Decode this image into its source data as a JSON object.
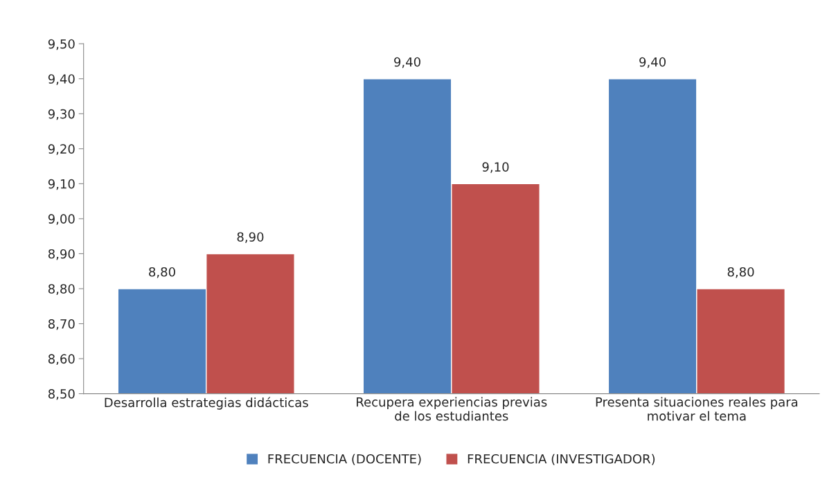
{
  "chart_data": {
    "type": "bar",
    "categories": [
      "Desarrolla estrategias didácticas",
      "Recupera experiencias previas\nde los estudiantes",
      "Presenta situaciones reales para\nmotivar el tema"
    ],
    "series": [
      {
        "name": "FRECUENCIA (DOCENTE)",
        "color": "#4f81bd",
        "values": [
          8.8,
          9.4,
          9.4
        ],
        "value_labels": [
          "8,80",
          "9,40",
          "9,40"
        ]
      },
      {
        "name": "FRECUENCIA (INVESTIGADOR)",
        "color": "#c0504d",
        "values": [
          8.9,
          9.1,
          8.8
        ],
        "value_labels": [
          "8,90",
          "9,10",
          "8,80"
        ]
      }
    ],
    "ylim": [
      8.5,
      9.5
    ],
    "yticks": [
      {
        "value": 8.5,
        "label": "8,50"
      },
      {
        "value": 8.6,
        "label": "8,60"
      },
      {
        "value": 8.7,
        "label": "8,70"
      },
      {
        "value": 8.8,
        "label": "8,80"
      },
      {
        "value": 8.9,
        "label": "8,90"
      },
      {
        "value": 9.0,
        "label": "9,00"
      },
      {
        "value": 9.1,
        "label": "9,10"
      },
      {
        "value": 9.2,
        "label": "9,20"
      },
      {
        "value": 9.3,
        "label": "9,30"
      },
      {
        "value": 9.4,
        "label": "9,40"
      },
      {
        "value": 9.5,
        "label": "9,50"
      }
    ],
    "grid": false,
    "legend": "bottom"
  }
}
